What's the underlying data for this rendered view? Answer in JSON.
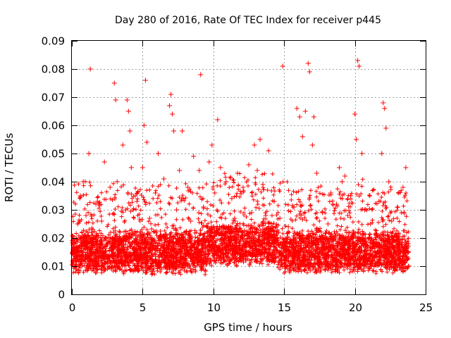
{
  "chart_data": {
    "type": "scatter",
    "title": "Day 280 of 2016, Rate Of TEC Index for receiver p445",
    "xlabel": "GPS time / hours",
    "ylabel": "ROTI / TECUs",
    "xlim": [
      0,
      25
    ],
    "ylim": [
      0,
      0.09
    ],
    "xticks": [
      0,
      5,
      10,
      15,
      20,
      25
    ],
    "xtick_labels": [
      "0",
      "5",
      "10",
      "15",
      "20",
      "25"
    ],
    "yticks": [
      0,
      0.01,
      0.02,
      0.03,
      0.04,
      0.05,
      0.06,
      0.07,
      0.08,
      0.09
    ],
    "ytick_labels": [
      "0",
      "0.01",
      "0.02",
      "0.03",
      "0.04",
      "0.05",
      "0.06",
      "0.07",
      "0.08",
      "0.09"
    ],
    "grid": true,
    "marker": "+",
    "color": "#ff0000",
    "series": [
      {
        "name": "ROTI",
        "points": [
          [
            0.1,
            0.012
          ],
          [
            0.2,
            0.018
          ],
          [
            0.3,
            0.009
          ],
          [
            0.4,
            0.025
          ],
          [
            0.5,
            0.014
          ],
          [
            0.6,
            0.035
          ],
          [
            0.7,
            0.011
          ],
          [
            0.8,
            0.04
          ],
          [
            0.9,
            0.02
          ],
          [
            1.0,
            0.028
          ],
          [
            1.1,
            0.016
          ],
          [
            1.2,
            0.05
          ],
          [
            1.3,
            0.08
          ],
          [
            1.4,
            0.022
          ],
          [
            1.5,
            0.01
          ],
          [
            1.7,
            0.032
          ],
          [
            1.9,
            0.013
          ],
          [
            2.1,
            0.026
          ],
          [
            2.3,
            0.047
          ],
          [
            2.5,
            0.018
          ],
          [
            2.7,
            0.038
          ],
          [
            2.9,
            0.012
          ],
          [
            3.0,
            0.075
          ],
          [
            3.1,
            0.069
          ],
          [
            3.2,
            0.04
          ],
          [
            3.4,
            0.022
          ],
          [
            3.6,
            0.053
          ],
          [
            3.8,
            0.03
          ],
          [
            3.9,
            0.069
          ],
          [
            4.0,
            0.065
          ],
          [
            4.1,
            0.058
          ],
          [
            4.2,
            0.045
          ],
          [
            4.4,
            0.019
          ],
          [
            4.6,
            0.033
          ],
          [
            4.8,
            0.014
          ],
          [
            5.0,
            0.045
          ],
          [
            5.1,
            0.06
          ],
          [
            5.2,
            0.076
          ],
          [
            5.3,
            0.054
          ],
          [
            5.5,
            0.027
          ],
          [
            5.7,
            0.012
          ],
          [
            5.9,
            0.036
          ],
          [
            6.1,
            0.05
          ],
          [
            6.3,
            0.021
          ],
          [
            6.5,
            0.041
          ],
          [
            6.7,
            0.015
          ],
          [
            6.9,
            0.067
          ],
          [
            7.0,
            0.071
          ],
          [
            7.1,
            0.064
          ],
          [
            7.2,
            0.058
          ],
          [
            7.4,
            0.03
          ],
          [
            7.6,
            0.044
          ],
          [
            7.8,
            0.058
          ],
          [
            8.0,
            0.017
          ],
          [
            8.2,
            0.038
          ],
          [
            8.4,
            0.026
          ],
          [
            8.6,
            0.049
          ],
          [
            8.8,
            0.013
          ],
          [
            9.0,
            0.044
          ],
          [
            9.1,
            0.078
          ],
          [
            9.3,
            0.031
          ],
          [
            9.5,
            0.02
          ],
          [
            9.7,
            0.047
          ],
          [
            9.9,
            0.053
          ],
          [
            10.1,
            0.036
          ],
          [
            10.3,
            0.062
          ],
          [
            10.5,
            0.045
          ],
          [
            10.7,
            0.024
          ],
          [
            10.9,
            0.04
          ],
          [
            11.1,
            0.016
          ],
          [
            11.3,
            0.034
          ],
          [
            11.5,
            0.027
          ],
          [
            11.7,
            0.043
          ],
          [
            11.9,
            0.019
          ],
          [
            12.1,
            0.038
          ],
          [
            12.3,
            0.012
          ],
          [
            12.5,
            0.046
          ],
          [
            12.7,
            0.029
          ],
          [
            12.9,
            0.053
          ],
          [
            13.1,
            0.044
          ],
          [
            13.3,
            0.055
          ],
          [
            13.5,
            0.039
          ],
          [
            13.7,
            0.028
          ],
          [
            13.9,
            0.051
          ],
          [
            14.1,
            0.021
          ],
          [
            14.3,
            0.033
          ],
          [
            14.5,
            0.015
          ],
          [
            14.7,
            0.027
          ],
          [
            14.9,
            0.081
          ],
          [
            15.1,
            0.018
          ],
          [
            15.3,
            0.024
          ],
          [
            15.5,
            0.011
          ],
          [
            15.7,
            0.031
          ],
          [
            15.9,
            0.066
          ],
          [
            16.1,
            0.063
          ],
          [
            16.3,
            0.056
          ],
          [
            16.5,
            0.065
          ],
          [
            16.7,
            0.082
          ],
          [
            16.8,
            0.079
          ],
          [
            17.0,
            0.053
          ],
          [
            17.1,
            0.063
          ],
          [
            17.3,
            0.043
          ],
          [
            17.5,
            0.02
          ],
          [
            17.7,
            0.029
          ],
          [
            17.9,
            0.014
          ],
          [
            18.1,
            0.025
          ],
          [
            18.3,
            0.036
          ],
          [
            18.5,
            0.019
          ],
          [
            18.7,
            0.032
          ],
          [
            18.9,
            0.045
          ],
          [
            19.1,
            0.04
          ],
          [
            19.3,
            0.042
          ],
          [
            19.5,
            0.028
          ],
          [
            19.7,
            0.035
          ],
          [
            19.9,
            0.022
          ],
          [
            20.0,
            0.064
          ],
          [
            20.1,
            0.055
          ],
          [
            20.2,
            0.083
          ],
          [
            20.3,
            0.081
          ],
          [
            20.5,
            0.05
          ],
          [
            20.7,
            0.03
          ],
          [
            20.9,
            0.017
          ],
          [
            21.1,
            0.025
          ],
          [
            21.3,
            0.012
          ],
          [
            21.5,
            0.021
          ],
          [
            21.7,
            0.033
          ],
          [
            21.9,
            0.05
          ],
          [
            22.0,
            0.068
          ],
          [
            22.1,
            0.066
          ],
          [
            22.2,
            0.059
          ],
          [
            22.4,
            0.04
          ],
          [
            22.6,
            0.026
          ],
          [
            22.8,
            0.019
          ],
          [
            23.0,
            0.031
          ],
          [
            23.2,
            0.015
          ],
          [
            23.4,
            0.038
          ],
          [
            23.6,
            0.045
          ],
          [
            23.8,
            0.01
          ]
        ]
      }
    ]
  }
}
